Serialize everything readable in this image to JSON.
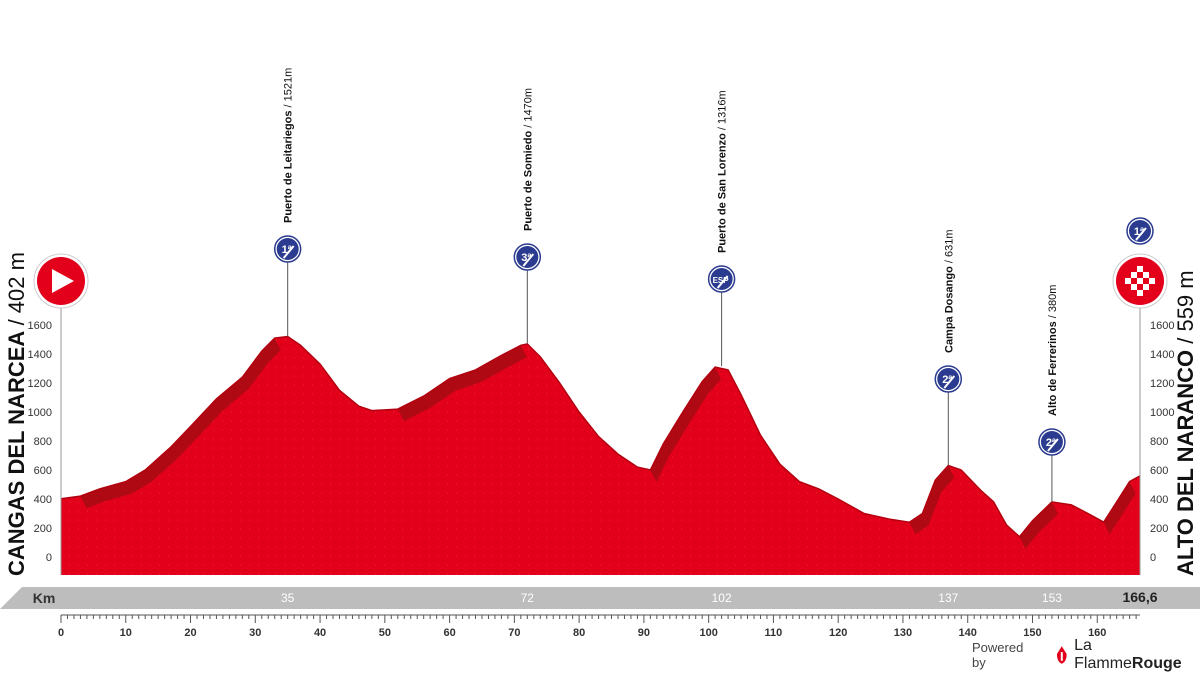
{
  "chart_data": {
    "type": "area",
    "x_unit": "Km",
    "ylim": [
      0,
      1700
    ],
    "xlim": [
      0,
      166.6
    ],
    "y_ticks": [
      0,
      200,
      400,
      600,
      800,
      1000,
      1200,
      1400,
      1600
    ],
    "x_ticks": [
      0,
      10,
      20,
      30,
      40,
      50,
      60,
      70,
      80,
      90,
      100,
      110,
      120,
      130,
      140,
      150,
      160
    ],
    "km_label": "Km",
    "km_markers": [
      {
        "km": 35,
        "label": "35"
      },
      {
        "km": 72,
        "label": "72"
      },
      {
        "km": 102,
        "label": "102"
      },
      {
        "km": 137,
        "label": "137"
      },
      {
        "km": 153,
        "label": "153"
      },
      {
        "km": 166.6,
        "label": "166,6"
      }
    ],
    "start": {
      "name": "CANGAS DEL NARCEA",
      "altitude": "/ 402 m"
    },
    "finish": {
      "name": "ALTO DEL NARANCO",
      "altitude": "/ 559 m",
      "category": "1"
    },
    "climbs": [
      {
        "km": 35,
        "altitude": 1521,
        "name": "Puerto de Leitariegos",
        "alt_label": "/ 1521m",
        "category": "1"
      },
      {
        "km": 72,
        "altitude": 1470,
        "name": "Puerto de Somiedo",
        "alt_label": "/ 1470m",
        "category": "3"
      },
      {
        "km": 102,
        "altitude": 1316,
        "name": "Puerto de San Lorenzo",
        "alt_label": "/ 1316m",
        "category": "ESP"
      },
      {
        "km": 137,
        "altitude": 631,
        "name": "Campa Dosango",
        "alt_label": "/ 631m",
        "category": "2"
      },
      {
        "km": 153,
        "altitude": 380,
        "name": "Alto de Ferrerinos",
        "alt_label": "/ 380m",
        "category": "2"
      }
    ],
    "profile": [
      [
        0,
        402
      ],
      [
        3,
        420
      ],
      [
        6,
        470
      ],
      [
        10,
        520
      ],
      [
        13,
        600
      ],
      [
        17,
        760
      ],
      [
        20,
        900
      ],
      [
        24,
        1090
      ],
      [
        28,
        1240
      ],
      [
        31,
        1420
      ],
      [
        33,
        1510
      ],
      [
        35,
        1521
      ],
      [
        37,
        1460
      ],
      [
        40,
        1330
      ],
      [
        43,
        1150
      ],
      [
        46,
        1040
      ],
      [
        48,
        1010
      ],
      [
        52,
        1020
      ],
      [
        56,
        1110
      ],
      [
        60,
        1230
      ],
      [
        64,
        1290
      ],
      [
        68,
        1390
      ],
      [
        71,
        1460
      ],
      [
        72,
        1470
      ],
      [
        74,
        1380
      ],
      [
        77,
        1200
      ],
      [
        80,
        1000
      ],
      [
        83,
        830
      ],
      [
        86,
        710
      ],
      [
        89,
        620
      ],
      [
        91,
        600
      ],
      [
        93,
        780
      ],
      [
        96,
        1000
      ],
      [
        99,
        1210
      ],
      [
        101,
        1310
      ],
      [
        103,
        1290
      ],
      [
        105,
        1120
      ],
      [
        108,
        840
      ],
      [
        111,
        640
      ],
      [
        114,
        520
      ],
      [
        117,
        470
      ],
      [
        120,
        400
      ],
      [
        124,
        300
      ],
      [
        128,
        260
      ],
      [
        131,
        240
      ],
      [
        133,
        300
      ],
      [
        135,
        530
      ],
      [
        137,
        631
      ],
      [
        139,
        600
      ],
      [
        142,
        460
      ],
      [
        144,
        380
      ],
      [
        146,
        220
      ],
      [
        148,
        140
      ],
      [
        150,
        250
      ],
      [
        153,
        380
      ],
      [
        156,
        360
      ],
      [
        159,
        290
      ],
      [
        161,
        240
      ],
      [
        163,
        380
      ],
      [
        165,
        520
      ],
      [
        166.6,
        559
      ]
    ],
    "footer": {
      "powered_by": "Powered by",
      "brand_a": "La Flamme",
      "brand_b": "Rouge"
    },
    "colors": {
      "profile": "#e3001b",
      "profile_dark": "#9e0d12",
      "band": "#bdbdbd",
      "badge": "#2b3b8f"
    }
  }
}
